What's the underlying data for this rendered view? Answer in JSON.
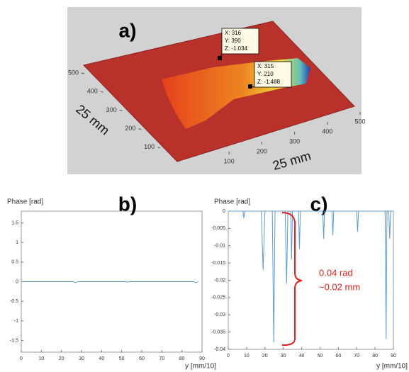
{
  "chart_data": [
    {
      "type": "surface3d",
      "title": "a)",
      "x_label": "25 mm",
      "y_label": "25 mm",
      "xlim": [
        0,
        500
      ],
      "xticks": [
        100,
        200,
        300,
        400,
        500
      ],
      "ylim": [
        0,
        500
      ],
      "yticks": [
        100,
        200,
        300,
        400,
        500
      ],
      "annotations": [
        [
          "X: 316",
          "Y: 390",
          "Z: -1.034"
        ],
        [
          "X: 315",
          "Y: 210",
          "Z: -1.488"
        ]
      ]
    },
    {
      "type": "line",
      "title": "b)",
      "y_label": "Phase [rad]",
      "x_label": "y [mm/10]",
      "xlim": [
        0,
        90
      ],
      "xticks": [
        0,
        10,
        20,
        30,
        40,
        50,
        60,
        70,
        80,
        90
      ],
      "ylim": [
        -1.8,
        1.8
      ],
      "yticks": [
        1.5,
        1,
        0.5,
        0,
        -0.5,
        -1,
        -1.5
      ],
      "x": [
        0,
        26,
        27,
        28,
        52,
        53,
        54,
        86,
        87,
        88
      ],
      "values": [
        0,
        0,
        -0.03,
        0,
        0,
        -0.01,
        0,
        0,
        -0.03,
        0
      ],
      "color": "#5b9bd5"
    },
    {
      "type": "line",
      "title": "c)",
      "y_label": "Phase [rad]",
      "x_label": "y [mm/10]",
      "xlim": [
        0,
        90
      ],
      "xticks": [
        0,
        10,
        20,
        30,
        40,
        50,
        60,
        70,
        80,
        90
      ],
      "ylim": [
        -0.04,
        0
      ],
      "yticks": [
        0,
        -0.005,
        -0.01,
        -0.015,
        -0.02,
        -0.025,
        -0.03,
        -0.035,
        -0.04
      ],
      "x": [
        0,
        8,
        8.5,
        9,
        18,
        19,
        20,
        24,
        24.8,
        25.5,
        31,
        31.8,
        32.5,
        34,
        34.5,
        35,
        38.3,
        38.8,
        39.3,
        51.5,
        52,
        52.5,
        56.5,
        57,
        57.5,
        70,
        70.5,
        71,
        85.5,
        86,
        86.5,
        87.5,
        88,
        88.5,
        90
      ],
      "values": [
        0,
        0,
        -0.002,
        0,
        0,
        -0.017,
        0,
        0,
        -0.038,
        0,
        0,
        -0.021,
        0,
        0,
        -0.014,
        0,
        0,
        -0.011,
        0,
        0,
        -0.008,
        0,
        0,
        -0.007,
        0,
        0,
        -0.006,
        0,
        0,
        -0.037,
        0,
        0,
        -0.008,
        0,
        0
      ],
      "color": "#5b9bd5",
      "annotations": [
        "0.04 rad",
        "~0.02 mm"
      ]
    }
  ]
}
